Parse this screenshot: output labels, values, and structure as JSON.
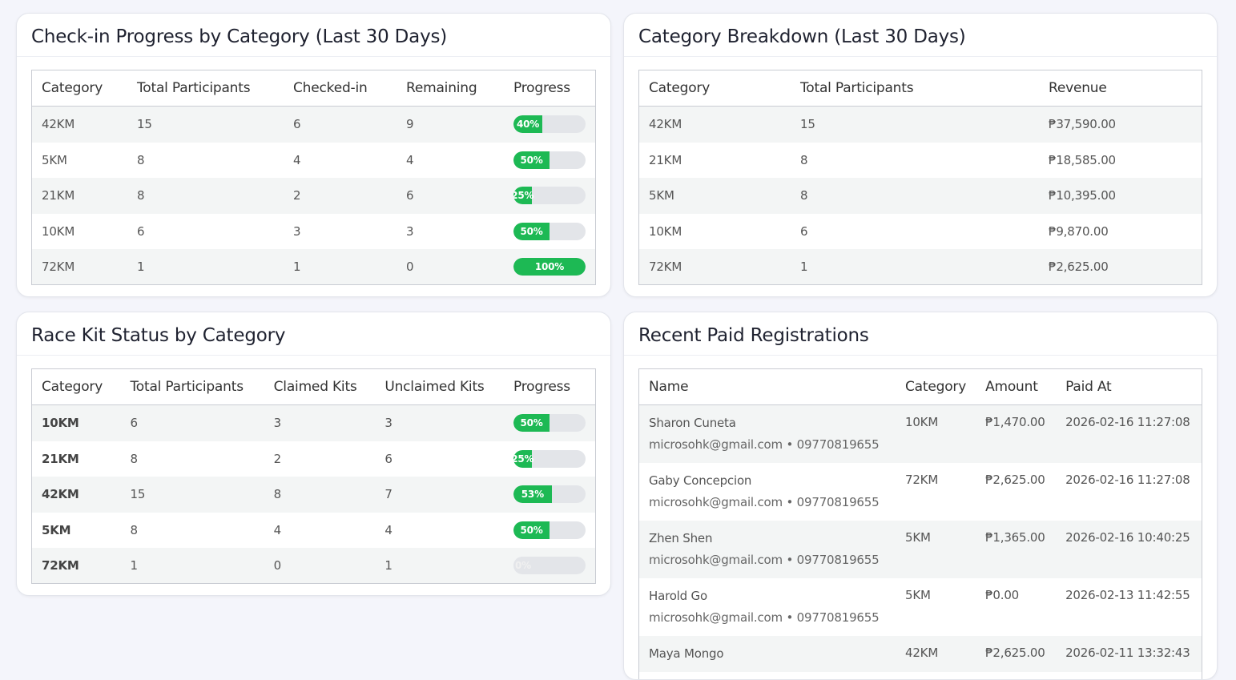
{
  "checkin": {
    "title": "Check-in Progress by Category (Last 30 Days)",
    "headers": [
      "Category",
      "Total Participants",
      "Checked-in",
      "Remaining",
      "Progress"
    ],
    "rows": [
      {
        "category": "42KM",
        "total": "15",
        "checked": "6",
        "remaining": "9",
        "progress": 40,
        "label": "40%"
      },
      {
        "category": "5KM",
        "total": "8",
        "checked": "4",
        "remaining": "4",
        "progress": 50,
        "label": "50%"
      },
      {
        "category": "21KM",
        "total": "8",
        "checked": "2",
        "remaining": "6",
        "progress": 25,
        "label": "25%"
      },
      {
        "category": "10KM",
        "total": "6",
        "checked": "3",
        "remaining": "3",
        "progress": 50,
        "label": "50%"
      },
      {
        "category": "72KM",
        "total": "1",
        "checked": "1",
        "remaining": "0",
        "progress": 100,
        "label": "100%"
      }
    ]
  },
  "breakdown": {
    "title": "Category Breakdown (Last 30 Days)",
    "headers": [
      "Category",
      "Total Participants",
      "Revenue"
    ],
    "rows": [
      {
        "category": "42KM",
        "total": "15",
        "revenue": "₱37,590.00"
      },
      {
        "category": "21KM",
        "total": "8",
        "revenue": "₱18,585.00"
      },
      {
        "category": "5KM",
        "total": "8",
        "revenue": "₱10,395.00"
      },
      {
        "category": "10KM",
        "total": "6",
        "revenue": "₱9,870.00"
      },
      {
        "category": "72KM",
        "total": "1",
        "revenue": "₱2,625.00"
      }
    ]
  },
  "racekit": {
    "title": "Race Kit Status by Category",
    "headers": [
      "Category",
      "Total Participants",
      "Claimed Kits",
      "Unclaimed Kits",
      "Progress"
    ],
    "rows": [
      {
        "category": "10KM",
        "total": "6",
        "claimed": "3",
        "unclaimed": "3",
        "progress": 50,
        "label": "50%"
      },
      {
        "category": "21KM",
        "total": "8",
        "claimed": "2",
        "unclaimed": "6",
        "progress": 25,
        "label": "25%"
      },
      {
        "category": "42KM",
        "total": "15",
        "claimed": "8",
        "unclaimed": "7",
        "progress": 53,
        "label": "53%"
      },
      {
        "category": "5KM",
        "total": "8",
        "claimed": "4",
        "unclaimed": "4",
        "progress": 50,
        "label": "50%"
      },
      {
        "category": "72KM",
        "total": "1",
        "claimed": "0",
        "unclaimed": "1",
        "progress": 0,
        "label": "0%"
      }
    ]
  },
  "recent": {
    "title": "Recent Paid Registrations",
    "headers": [
      "Name",
      "Category",
      "Amount",
      "Paid At"
    ],
    "rows": [
      {
        "name": "Sharon Cuneta",
        "contact": "microsohk@gmail.com • 09770819655",
        "category": "10KM",
        "amount": "₱1,470.00",
        "paid_at": "2026-02-16 11:27:08"
      },
      {
        "name": "Gaby Concepcion",
        "contact": "microsohk@gmail.com • 09770819655",
        "category": "72KM",
        "amount": "₱2,625.00",
        "paid_at": "2026-02-16 11:27:08"
      },
      {
        "name": "Zhen Shen",
        "contact": "microsohk@gmail.com • 09770819655",
        "category": "5KM",
        "amount": "₱1,365.00",
        "paid_at": "2026-02-16 10:40:25"
      },
      {
        "name": "Harold Go",
        "contact": "microsohk@gmail.com • 09770819655",
        "category": "5KM",
        "amount": "₱0.00",
        "paid_at": "2026-02-13 11:42:55"
      },
      {
        "name": "Maya Mongo",
        "contact": "",
        "category": "42KM",
        "amount": "₱2,625.00",
        "paid_at": "2026-02-11 13:32:43"
      }
    ]
  },
  "colors": {
    "progress_fill": "#1db954",
    "progress_track": "#e3e5e9"
  }
}
